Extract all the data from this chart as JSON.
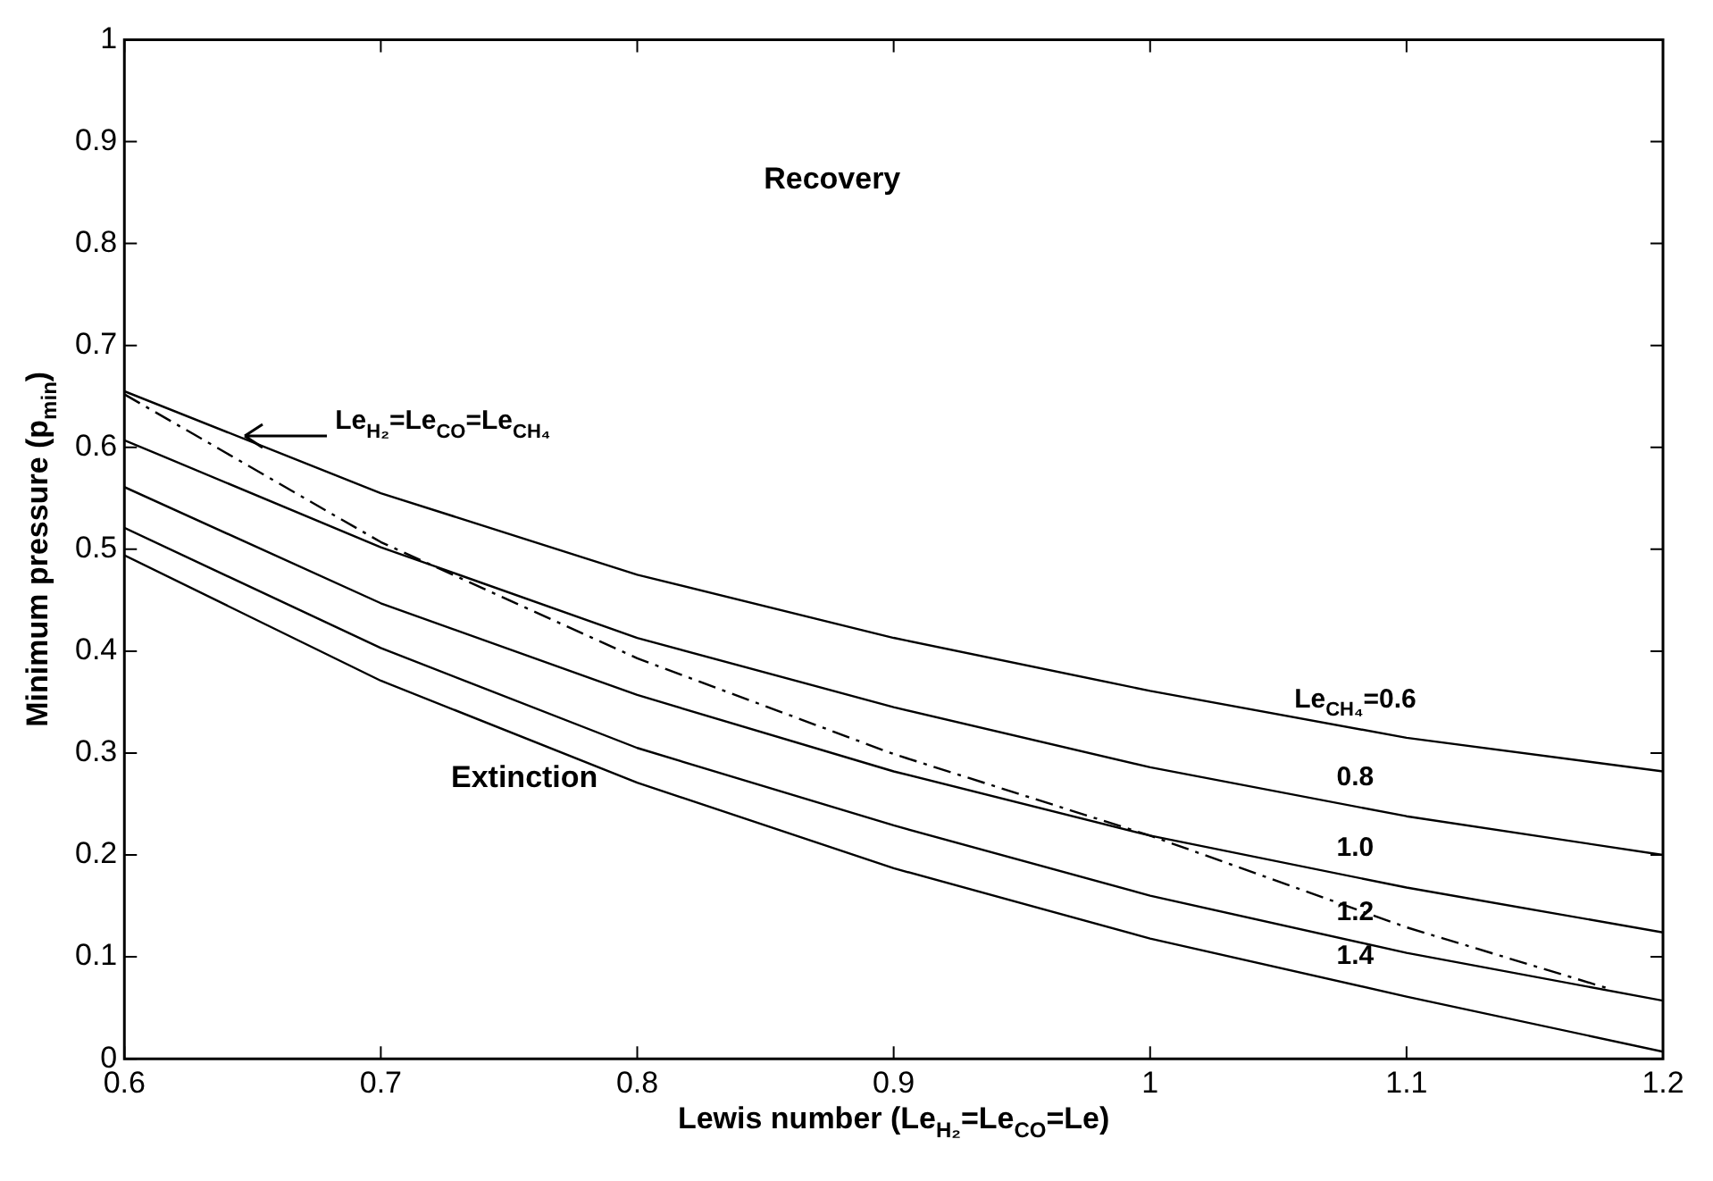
{
  "chart_data": {
    "type": "line",
    "xlabel": "Lewis number (Le$_{H₂}$=Le$_{CO}$=Le)",
    "ylabel": "Minimum pressure (p$_{min}$)",
    "x": [
      0.6,
      0.7,
      0.8,
      0.9,
      1.0,
      1.1,
      1.2
    ],
    "xlim": [
      0.6,
      1.2
    ],
    "xticks": [
      0.6,
      0.7,
      0.8,
      0.9,
      1,
      1.1,
      1.2
    ],
    "ylim": [
      0,
      1
    ],
    "yticks": [
      0,
      0.1,
      0.2,
      0.3,
      0.4,
      0.5,
      0.6,
      0.7,
      0.8,
      0.9,
      1
    ],
    "marker": "none",
    "series": [
      {
        "name": "Le$_{CH₄}$=0.6",
        "color": "#000000",
        "values": [
          0.655,
          0.555,
          0.475,
          0.413,
          0.361,
          0.315,
          0.282
        ]
      },
      {
        "name": "0.8",
        "color": "#000000",
        "values": [
          0.607,
          0.502,
          0.413,
          0.345,
          0.286,
          0.238,
          0.2
        ]
      },
      {
        "name": "1.0",
        "color": "#000000",
        "values": [
          0.561,
          0.447,
          0.357,
          0.282,
          0.219,
          0.168,
          0.124
        ]
      },
      {
        "name": "1.2",
        "color": "#000000",
        "values": [
          0.521,
          0.403,
          0.305,
          0.229,
          0.16,
          0.104,
          0.057
        ]
      },
      {
        "name": "1.4",
        "color": "#000000",
        "values": [
          0.494,
          0.371,
          0.271,
          0.187,
          0.118,
          0.061,
          0.007
        ]
      },
      {
        "color": "#000000",
        "line_style": "dashed",
        "x": [
          0.6,
          0.7,
          0.8,
          0.9,
          1.0,
          1.1,
          1.18
        ],
        "values": [
          0.652,
          0.507,
          0.393,
          0.299,
          0.219,
          0.129,
          0.068
        ]
      }
    ],
    "annotations": [
      "Recovery",
      "Extinction",
      "Le$_{H₂}$=Le$_{CO}$=Le$_{CH₄}$"
    ]
  }
}
